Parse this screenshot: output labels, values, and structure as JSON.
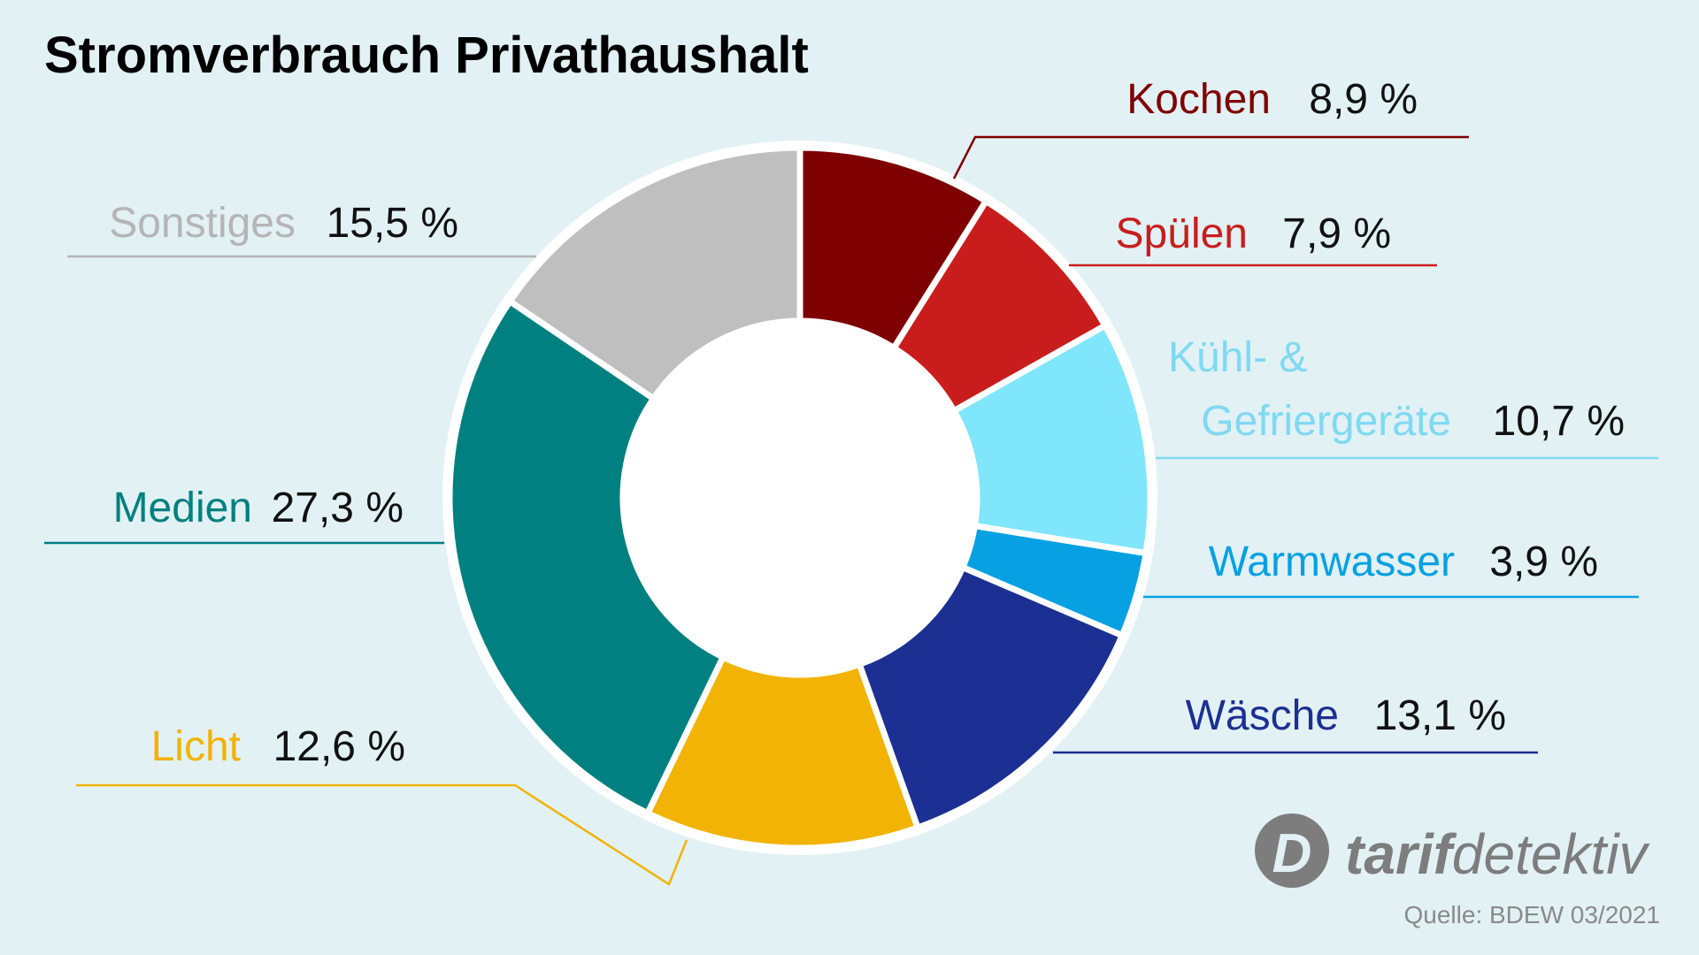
{
  "chart_data": {
    "type": "pie",
    "variant": "donut",
    "title": "Stromverbrauch Privathaushalt",
    "unit": "%",
    "slices": [
      {
        "label": "Kochen",
        "value": 8.9,
        "value_text": "8,9 %",
        "color": "#7f0000"
      },
      {
        "label": "Spülen",
        "value": 7.9,
        "value_text": "7,9 %",
        "color": "#c91d1d"
      },
      {
        "label_lines": [
          "Kühl- &",
          "Gefriergeräte"
        ],
        "value": 10.7,
        "value_text": "10,7 %",
        "color": "#80e6fb",
        "label_color": "#7fd9f2"
      },
      {
        "label": "Warmwasser",
        "value": 3.9,
        "value_text": "3,9 %",
        "color": "#07a1e3"
      },
      {
        "label": "Wäsche",
        "value": 13.1,
        "value_text": "13,1 %",
        "color": "#1c2f92"
      },
      {
        "label": "Licht",
        "value": 12.6,
        "value_text": "12,6 %",
        "color": "#f2b304",
        "label_color": "#f2b304"
      },
      {
        "label": "Medien",
        "value": 27.3,
        "value_text": "27,3 %",
        "color": "#008080"
      },
      {
        "label": "Sonstiges",
        "value": 15.5,
        "value_text": "15,5 %",
        "color": "#bfbfbf",
        "label_color": "#b5b5b5"
      }
    ],
    "legend": "none"
  },
  "brand": {
    "prefix": "tarif",
    "suffix": "detektiv",
    "logo_letter": "D"
  },
  "source": "Quelle: BDEW 03/2021"
}
